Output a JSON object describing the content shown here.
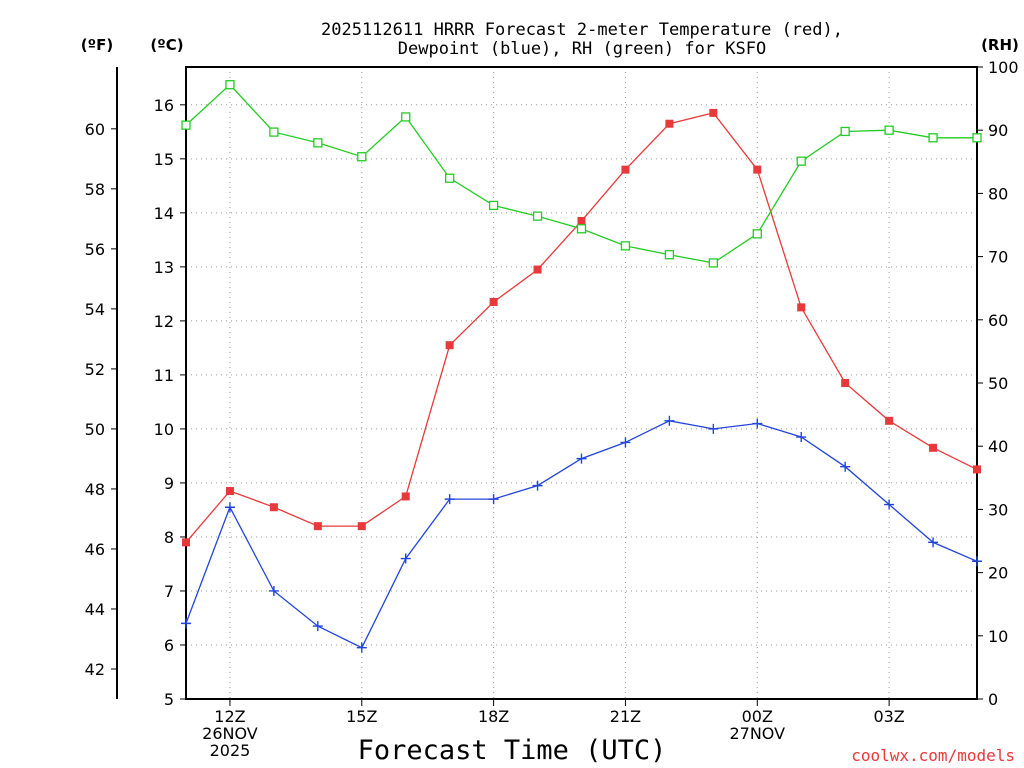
{
  "chart_data": {
    "type": "line",
    "title_line1": "2025112611 HRRR Forecast 2-meter Temperature (red),",
    "title_line2": "Dewpoint (blue), RH (green) for KSFO",
    "xlabel": "Forecast Time (UTC)",
    "credit": "coolwx.com/models",
    "units": {
      "fahrenheit": "(ºF)",
      "celsius": "(ºC)",
      "rh": "(RH)"
    },
    "x": [
      11,
      12,
      13,
      14,
      15,
      16,
      17,
      18,
      19,
      20,
      21,
      22,
      23,
      24,
      25,
      26,
      27,
      28,
      29
    ],
    "x_range": [
      11,
      29
    ],
    "x_ticks": [
      {
        "x": 12,
        "lines": [
          "12Z",
          "26NOV",
          "2025"
        ]
      },
      {
        "x": 15,
        "lines": [
          "15Z"
        ]
      },
      {
        "x": 18,
        "lines": [
          "18Z"
        ]
      },
      {
        "x": 21,
        "lines": [
          "21Z"
        ]
      },
      {
        "x": 24,
        "lines": [
          "00Z",
          "27NOV"
        ]
      },
      {
        "x": 27,
        "lines": [
          "03Z"
        ]
      }
    ],
    "celsius_axis": {
      "range": [
        5,
        16.7
      ],
      "ticks": [
        5,
        6,
        7,
        8,
        9,
        10,
        11,
        12,
        13,
        14,
        15,
        16
      ]
    },
    "fahrenheit_axis": {
      "range": [
        41,
        62.06
      ],
      "ticks": [
        42,
        44,
        46,
        48,
        50,
        52,
        54,
        56,
        58,
        60
      ]
    },
    "rh_axis": {
      "range": [
        0,
        100
      ],
      "ticks": [
        0,
        10,
        20,
        30,
        40,
        50,
        60,
        70,
        80,
        90,
        100
      ]
    },
    "series": [
      {
        "name": "2-meter Temperature",
        "color": "#e8393a",
        "marker": "filled-square",
        "axis": "celsius",
        "values": [
          7.9,
          8.85,
          8.55,
          8.2,
          8.2,
          8.75,
          11.55,
          12.35,
          12.95,
          13.85,
          14.8,
          15.65,
          15.85,
          14.8,
          12.25,
          10.85,
          10.15,
          9.65,
          9.25
        ]
      },
      {
        "name": "Dewpoint",
        "color": "#2244dd",
        "marker": "plus",
        "axis": "celsius",
        "values": [
          6.4,
          8.55,
          7.0,
          6.35,
          5.95,
          7.6,
          8.7,
          8.7,
          8.95,
          9.45,
          9.75,
          10.15,
          10.0,
          10.1,
          9.85,
          9.3,
          8.6,
          7.9,
          7.55
        ]
      },
      {
        "name": "RH",
        "color": "#22cc22",
        "marker": "open-square",
        "axis": "rh",
        "values": [
          90.8,
          97.2,
          89.7,
          88.0,
          85.8,
          92.1,
          82.4,
          78.1,
          76.4,
          74.4,
          71.7,
          70.3,
          69.0,
          73.6,
          85.1,
          89.8,
          90.0,
          88.8,
          88.8
        ]
      }
    ]
  }
}
